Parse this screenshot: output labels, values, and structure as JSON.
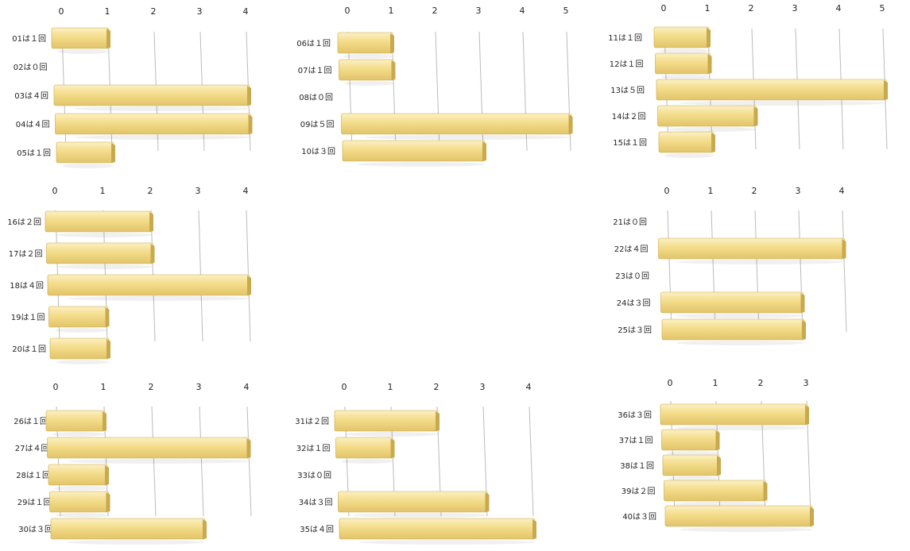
{
  "colors": {
    "bar_face": "#f3dc8a",
    "bar_top": "#f9ecb8",
    "bar_side": "#c9a94e",
    "grid": "#bbbbbb"
  },
  "chart_data": [
    {
      "type": "bar",
      "orientation": "horizontal",
      "categories": [
        "01は１回",
        "02は０回",
        "03は４回",
        "04は４回",
        "05は１回"
      ],
      "values": [
        1,
        0,
        4,
        4,
        1
      ],
      "ticks": [
        "0",
        "1",
        "2",
        "3",
        "4"
      ],
      "xlim": [
        0,
        4
      ]
    },
    {
      "type": "bar",
      "orientation": "horizontal",
      "categories": [
        "06は１回",
        "07は１回",
        "08は０回",
        "09は５回",
        "10は３回"
      ],
      "values": [
        1,
        1,
        0,
        5,
        3
      ],
      "ticks": [
        "0",
        "1",
        "2",
        "3",
        "4",
        "5"
      ],
      "xlim": [
        0,
        5
      ]
    },
    {
      "type": "bar",
      "orientation": "horizontal",
      "categories": [
        "11は１回",
        "12は１回",
        "13は５回",
        "14は２回",
        "15は１回"
      ],
      "values": [
        1,
        1,
        5,
        2,
        1
      ],
      "ticks": [
        "0",
        "1",
        "2",
        "3",
        "4",
        "5"
      ],
      "xlim": [
        0,
        5
      ]
    },
    {
      "type": "bar",
      "orientation": "horizontal",
      "categories": [
        "16は２回",
        "17は２回",
        "18は４回",
        "19は１回",
        "20は１回"
      ],
      "values": [
        2,
        2,
        4,
        1,
        1
      ],
      "ticks": [
        "0",
        "1",
        "2",
        "3",
        "4"
      ],
      "xlim": [
        0,
        4
      ]
    },
    {
      "type": "bar",
      "orientation": "horizontal",
      "categories": [
        "21は０回",
        "22は４回",
        "23は０回",
        "24は３回",
        "25は３回"
      ],
      "values": [
        0,
        4,
        0,
        3,
        3
      ],
      "ticks": [
        "0",
        "1",
        "2",
        "3",
        "4"
      ],
      "xlim": [
        0,
        4
      ]
    },
    {
      "type": "bar",
      "orientation": "horizontal",
      "categories": [
        "26は１回",
        "27は４回",
        "28は１回",
        "29は１回",
        "30は３回"
      ],
      "values": [
        1,
        4,
        1,
        1,
        3
      ],
      "ticks": [
        "0",
        "1",
        "2",
        "3",
        "4"
      ],
      "xlim": [
        0,
        4
      ]
    },
    {
      "type": "bar",
      "orientation": "horizontal",
      "categories": [
        "31は２回",
        "32は１回",
        "33は０回",
        "34は３回",
        "35は４回"
      ],
      "values": [
        2,
        1,
        0,
        3,
        4
      ],
      "ticks": [
        "0",
        "1",
        "2",
        "3",
        "4"
      ],
      "xlim": [
        0,
        4
      ]
    },
    {
      "type": "bar",
      "orientation": "horizontal",
      "categories": [
        "36は３回",
        "37は１回",
        "38は１回",
        "39は２回",
        "40は３回"
      ],
      "values": [
        3,
        1,
        1,
        2,
        3
      ],
      "ticks": [
        "0",
        "1",
        "2",
        "3"
      ],
      "xlim": [
        0,
        3
      ]
    }
  ]
}
